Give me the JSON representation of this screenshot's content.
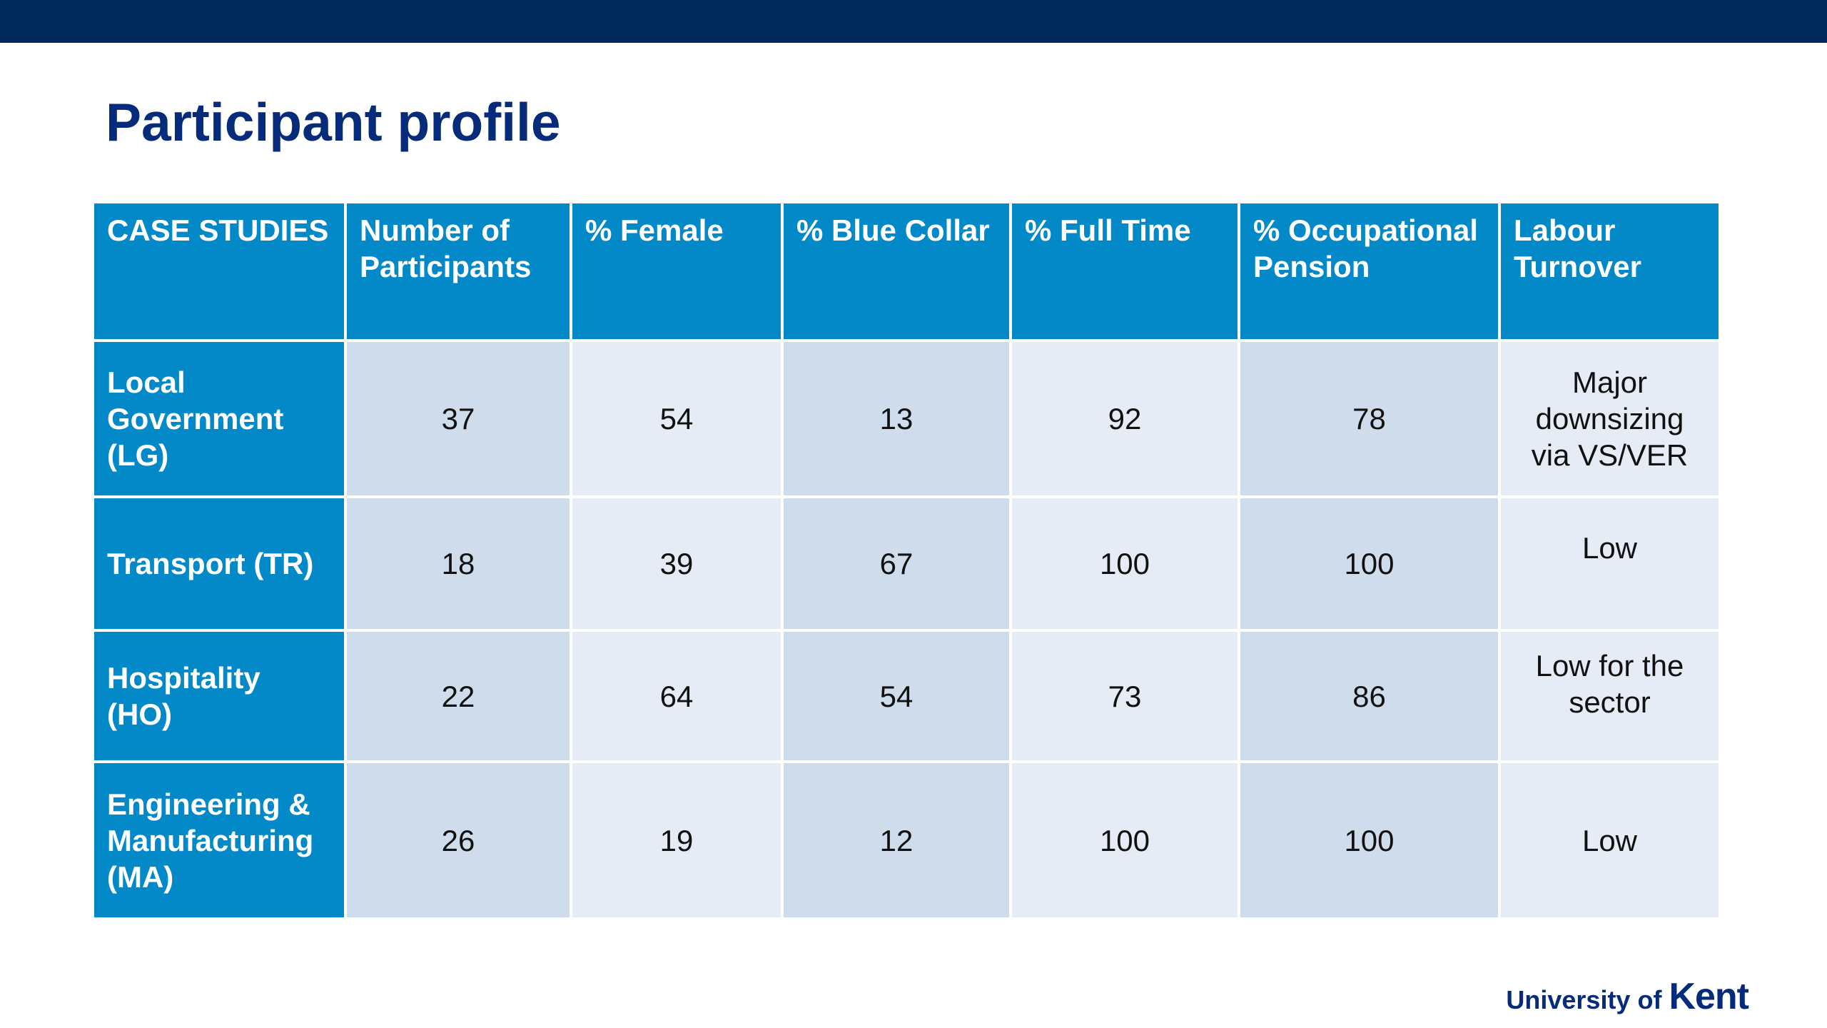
{
  "slide": {
    "title": "Participant profile"
  },
  "table": {
    "headers": [
      "CASE STUDIES",
      "Number of Participants",
      "% Female",
      "% Blue Collar",
      "% Full Time",
      "% Occupational Pension",
      "Labour Turnover"
    ],
    "rows": [
      {
        "case": "Local Government (LG)",
        "participants": "37",
        "female": "54",
        "blue_collar": "13",
        "full_time": "92",
        "pension": "78",
        "turnover": "Major downsizing via VS/VER"
      },
      {
        "case": "Transport (TR)",
        "participants": "18",
        "female": "39",
        "blue_collar": "67",
        "full_time": "100",
        "pension": "100",
        "turnover": "Low"
      },
      {
        "case": "Hospitality (HO)",
        "participants": "22",
        "female": "64",
        "blue_collar": "54",
        "full_time": "73",
        "pension": "86",
        "turnover": "Low for the sector"
      },
      {
        "case": "Engineering & Manufacturing (MA)",
        "participants": "26",
        "female": "19",
        "blue_collar": "12",
        "full_time": "100",
        "pension": "100",
        "turnover": "Low"
      }
    ]
  },
  "logo": {
    "prefix": "University of ",
    "name": "Kent"
  },
  "colors": {
    "top_bar": "#002a5c",
    "title": "#062b7a",
    "header_fill": "#0388c8",
    "cell_dark": "#cfdcec",
    "cell_light": "#e6ecf6"
  }
}
